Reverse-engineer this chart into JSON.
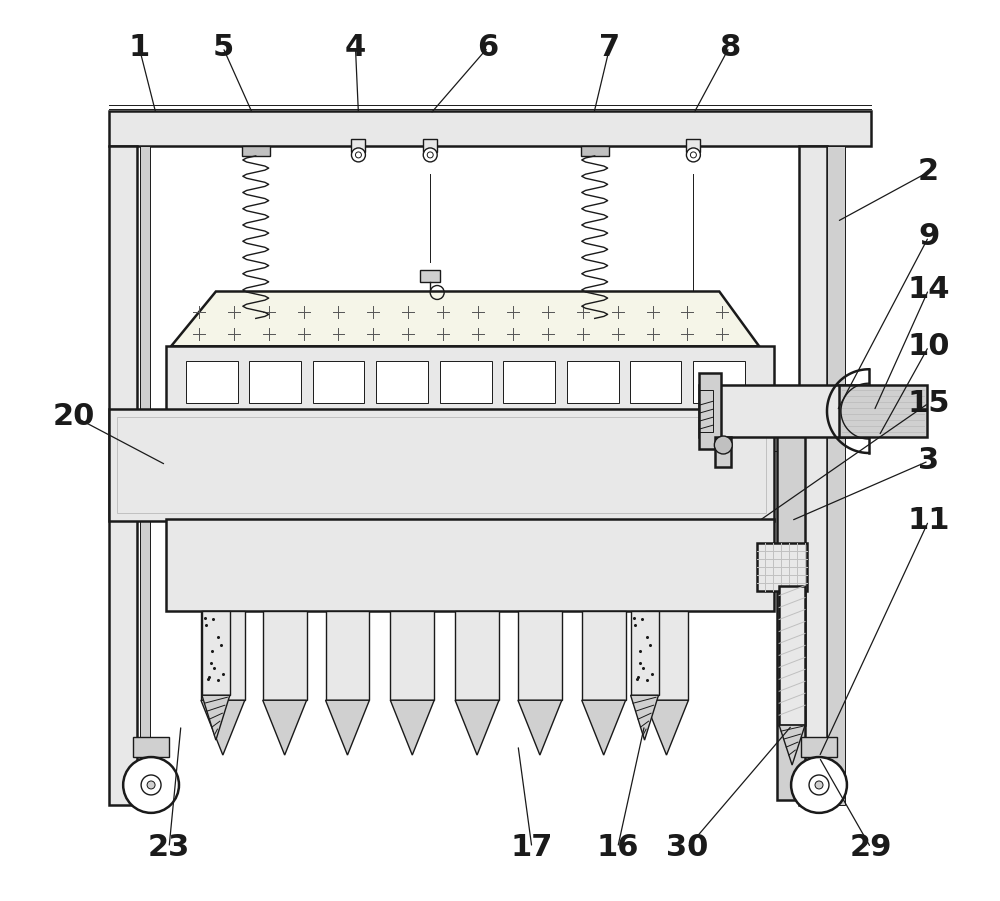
{
  "bg_color": "#ffffff",
  "lc": "#1a1a1a",
  "gray1": "#e8e8e8",
  "gray2": "#d0d0d0",
  "gray3": "#c0c0c0",
  "gray4": "#f0f0f0",
  "white": "#ffffff",
  "cross_color": "#555555",
  "hatch_color": "#888888"
}
